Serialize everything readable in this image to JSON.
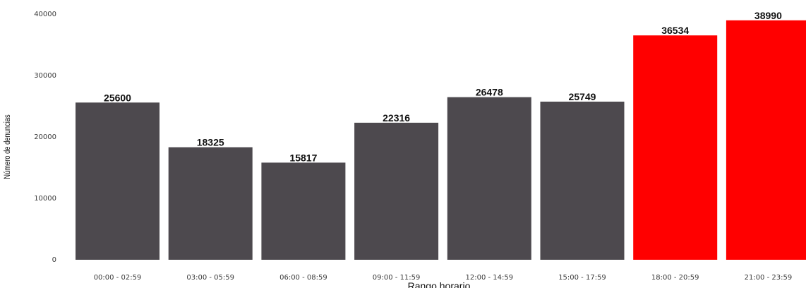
{
  "chart_data": {
    "type": "bar",
    "title": "",
    "xlabel": "Rango horario",
    "ylabel": "Número de denuncias",
    "ylim": [
      0,
      40000
    ],
    "yticks": [
      0,
      10000,
      20000,
      30000,
      40000
    ],
    "grid": false,
    "categories": [
      "00:00 - 02:59",
      "03:00 - 05:59",
      "06:00 - 08:59",
      "09:00 - 11:59",
      "12:00 - 14:59",
      "15:00 - 17:59",
      "18:00 - 20:59",
      "21:00 - 23:59"
    ],
    "values": [
      25600,
      18325,
      15817,
      22316,
      26478,
      25749,
      36534,
      38990
    ],
    "bar_colors": [
      "#4d494e",
      "#4d494e",
      "#4d494e",
      "#4d494e",
      "#4d494e",
      "#4d494e",
      "#ff0000",
      "#ff0000"
    ]
  }
}
